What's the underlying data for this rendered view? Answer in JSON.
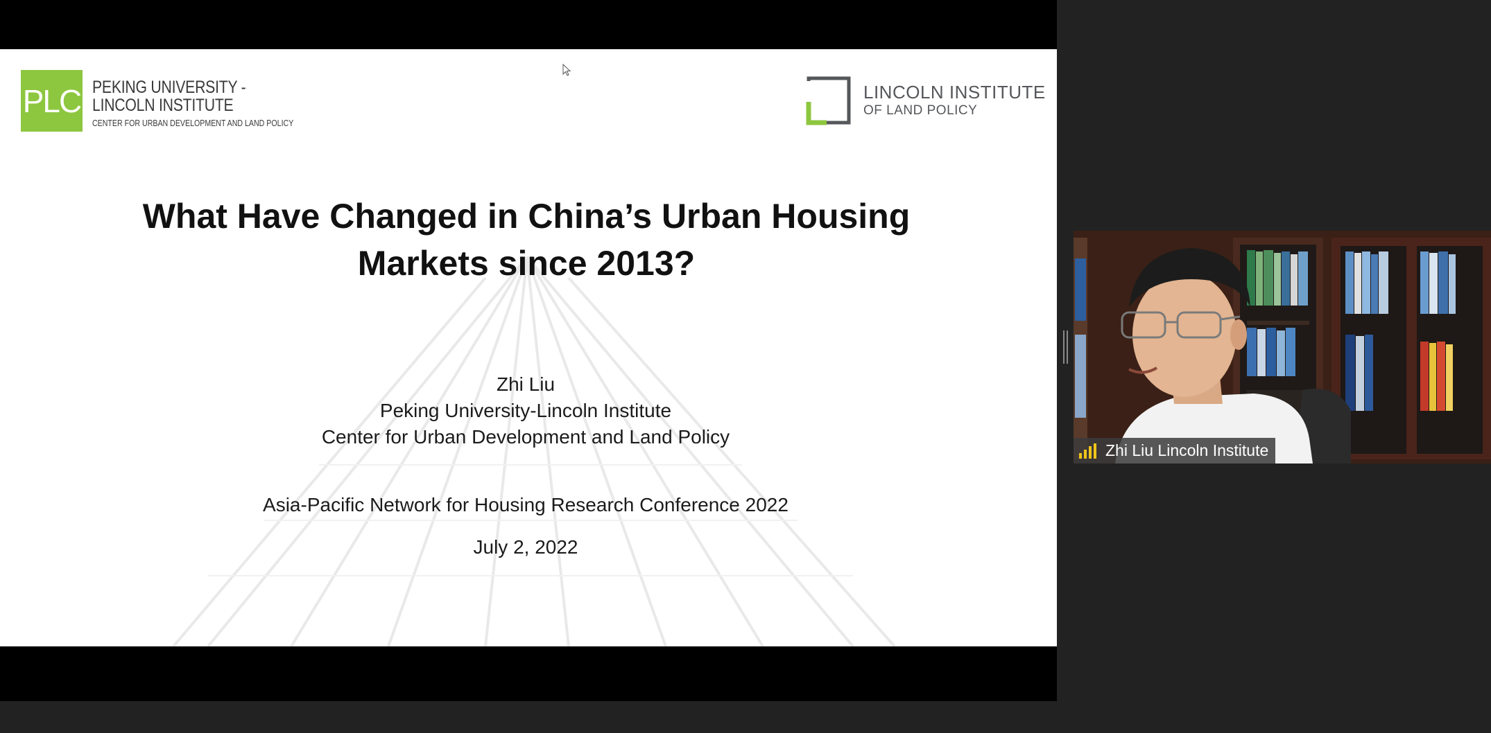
{
  "slide": {
    "plc_logo": {
      "abbr": "PLC",
      "line1": "PEKING UNIVERSITY -",
      "line2": "LINCOLN INSTITUTE",
      "line3": "CENTER FOR URBAN DEVELOPMENT AND LAND POLICY",
      "color": "#8dc63f"
    },
    "lincoln_logo": {
      "line1": "LINCOLN INSTITUTE",
      "line2": "OF LAND POLICY"
    },
    "title": "What Have Changed in China’s Urban Housing Markets since 2013?",
    "author": "Zhi Liu",
    "affiliation1": "Peking University-Lincoln Institute",
    "affiliation2": "Center for Urban Development and Land Policy",
    "conference": "Asia-Pacific Network for Housing Research Conference 2022",
    "date": "July 2, 2022"
  },
  "video": {
    "participant_name": "Zhi Liu Lincoln Institute",
    "icon": "signal-strength-icon",
    "signal_color": "#f0c419"
  }
}
